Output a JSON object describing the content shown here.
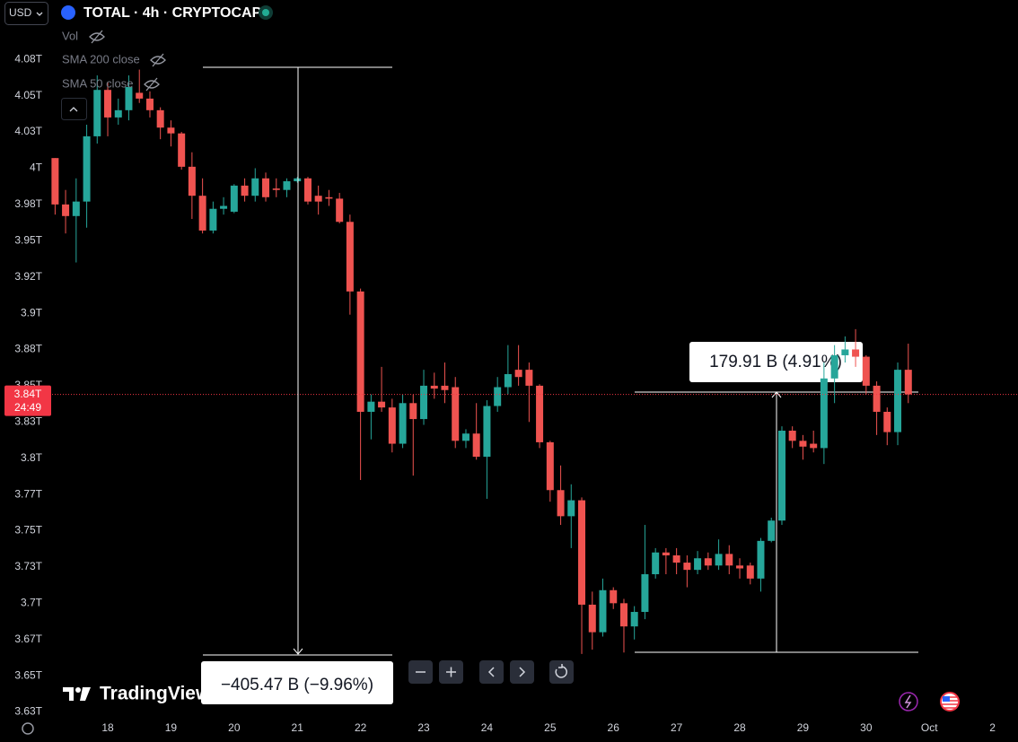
{
  "currency": "USD",
  "brand": "TradingView",
  "chart_data": {
    "type": "candlestick",
    "title": "TOTAL · 4h · CRYPTOCAP",
    "indicators": [
      "Vol",
      "SMA 200 close",
      "SMA 50 close"
    ],
    "up_color": "#26a69a",
    "down_color": "#ef5350",
    "grid": false,
    "last_price_label": "3.84T",
    "countdown": "24:49",
    "annotations": [
      "−405.47 B (−9.96%)",
      "179.91 B (4.91%)"
    ],
    "xlim": [
      17.119,
      32.403
    ],
    "xticks": [
      18,
      19,
      20,
      21,
      22,
      23,
      24,
      25,
      26,
      27,
      28,
      29,
      30,
      {
        "value": 31,
        "label": "Oct"
      },
      {
        "value": 32,
        "label": "2"
      }
    ],
    "ylim": [
      3.621,
      4.116
    ],
    "yticks": [
      {
        "value": 4.075,
        "label": "4.08T"
      },
      {
        "value": 4.05,
        "label": "4.05T"
      },
      {
        "value": 4.025,
        "label": "4.03T"
      },
      {
        "value": 4.0,
        "label": "4T"
      },
      {
        "value": 3.975,
        "label": "3.98T"
      },
      {
        "value": 3.95,
        "label": "3.95T"
      },
      {
        "value": 3.925,
        "label": "3.92T"
      },
      {
        "value": 3.9,
        "label": "3.9T"
      },
      {
        "value": 3.875,
        "label": "3.88T"
      },
      {
        "value": 3.85,
        "label": "3.85T"
      },
      {
        "value": 3.825,
        "label": "3.83T"
      },
      {
        "value": 3.8,
        "label": "3.8T"
      },
      {
        "value": 3.775,
        "label": "3.77T"
      },
      {
        "value": 3.75,
        "label": "3.75T"
      },
      {
        "value": 3.725,
        "label": "3.73T"
      },
      {
        "value": 3.7,
        "label": "3.7T"
      },
      {
        "value": 3.675,
        "label": "3.67T"
      },
      {
        "value": 3.65,
        "label": "3.65T"
      },
      {
        "value": 3.625,
        "label": "3.63T"
      }
    ],
    "x": [
      17.167,
      17.333,
      17.5,
      17.667,
      17.833,
      18,
      18.167,
      18.333,
      18.5,
      18.667,
      18.833,
      19,
      19.167,
      19.333,
      19.5,
      19.667,
      19.833,
      20,
      20.167,
      20.333,
      20.5,
      20.667,
      20.833,
      21,
      21.167,
      21.333,
      21.5,
      21.667,
      21.833,
      22,
      22.167,
      22.333,
      22.5,
      22.667,
      22.833,
      23,
      23.167,
      23.333,
      23.5,
      23.667,
      23.833,
      24,
      24.167,
      24.333,
      24.5,
      24.667,
      24.833,
      25,
      25.167,
      25.333,
      25.5,
      25.667,
      25.833,
      26,
      26.167,
      26.333,
      26.5,
      26.667,
      26.833,
      27,
      27.167,
      27.333,
      27.5,
      27.667,
      27.833,
      28,
      28.167,
      28.333,
      28.5,
      28.667,
      28.833,
      29,
      29.167,
      29.333,
      29.5,
      29.667,
      29.833,
      30,
      30.167,
      30.333,
      30.5,
      30.667
    ],
    "open": [
      4.007,
      3.975,
      3.967,
      3.977,
      4.022,
      4.054,
      4.035,
      4.04,
      4.052,
      4.048,
      4.04,
      4.028,
      4.024,
      4.001,
      3.981,
      3.957,
      3.972,
      3.97,
      3.988,
      3.981,
      3.993,
      3.986,
      3.985,
      3.991,
      3.993,
      3.981,
      3.98,
      3.979,
      3.963,
      3.915,
      3.832,
      3.839,
      3.835,
      3.81,
      3.838,
      3.827,
      3.85,
      3.85,
      3.849,
      3.812,
      3.817,
      3.801,
      3.836,
      3.849,
      3.861,
      3.861,
      3.85,
      3.811,
      3.778,
      3.76,
      3.771,
      3.699,
      3.68,
      3.709,
      3.7,
      3.684,
      3.694,
      3.72,
      3.735,
      3.733,
      3.728,
      3.723,
      3.731,
      3.726,
      3.734,
      3.726,
      3.726,
      3.717,
      3.743,
      3.757,
      3.819,
      3.812,
      3.81,
      3.807,
      3.855,
      3.871,
      3.875,
      3.87,
      3.85,
      3.832,
      3.818,
      3.861
    ],
    "high": [
      4.007,
      3.985,
      3.993,
      4.03,
      4.064,
      4.059,
      4.048,
      4.064,
      4.068,
      4.053,
      4.042,
      4.033,
      4.025,
      4.011,
      3.993,
      3.977,
      3.98,
      3.989,
      3.993,
      4.0,
      3.997,
      3.993,
      3.993,
      3.994,
      3.994,
      3.988,
      3.985,
      3.983,
      3.968,
      3.917,
      3.844,
      3.863,
      3.841,
      3.844,
      3.844,
      3.861,
      3.859,
      3.866,
      3.856,
      3.82,
      3.838,
      3.84,
      3.856,
      3.878,
      3.878,
      3.866,
      3.851,
      3.812,
      3.795,
      3.782,
      3.773,
      3.708,
      3.717,
      3.711,
      3.703,
      3.698,
      3.754,
      3.738,
      3.738,
      3.738,
      3.733,
      3.736,
      3.735,
      3.744,
      3.74,
      3.731,
      3.728,
      3.745,
      3.759,
      3.822,
      3.822,
      3.816,
      3.819,
      3.866,
      3.878,
      3.884,
      3.889,
      3.871,
      3.853,
      3.835,
      3.866,
      3.879
    ],
    "low": [
      3.968,
      3.955,
      3.935,
      3.959,
      4.017,
      4.022,
      4.03,
      4.033,
      4.045,
      4.035,
      4.02,
      4.015,
      3.999,
      3.965,
      3.955,
      3.955,
      3.968,
      3.969,
      3.977,
      3.977,
      3.977,
      3.98,
      3.98,
      3.99,
      3.975,
      3.968,
      3.974,
      3.962,
      3.899,
      3.785,
      3.813,
      3.832,
      3.804,
      3.807,
      3.788,
      3.823,
      3.841,
      3.838,
      3.807,
      3.807,
      3.799,
      3.772,
      3.832,
      3.844,
      3.85,
      3.825,
      3.807,
      3.77,
      3.754,
      3.738,
      3.665,
      3.668,
      3.677,
      3.696,
      3.666,
      3.675,
      3.689,
      3.717,
      3.72,
      3.72,
      3.711,
      3.72,
      3.723,
      3.723,
      3.72,
      3.717,
      3.713,
      3.708,
      3.742,
      3.754,
      3.807,
      3.799,
      3.804,
      3.796,
      3.838,
      3.866,
      3.863,
      3.844,
      3.816,
      3.809,
      3.809,
      3.838
    ],
    "close": [
      3.975,
      3.967,
      3.977,
      4.022,
      4.054,
      4.035,
      4.04,
      4.056,
      4.048,
      4.04,
      4.028,
      4.024,
      4.001,
      3.981,
      3.957,
      3.972,
      3.974,
      3.988,
      3.981,
      3.993,
      3.98,
      3.985,
      3.991,
      3.993,
      3.977,
      3.977,
      3.979,
      3.963,
      3.915,
      3.832,
      3.839,
      3.835,
      3.81,
      3.838,
      3.827,
      3.85,
      3.848,
      3.847,
      3.812,
      3.817,
      3.801,
      3.836,
      3.849,
      3.858,
      3.856,
      3.85,
      3.811,
      3.778,
      3.76,
      3.771,
      3.699,
      3.68,
      3.709,
      3.7,
      3.684,
      3.694,
      3.72,
      3.735,
      3.733,
      3.728,
      3.723,
      3.731,
      3.726,
      3.734,
      3.726,
      3.724,
      3.717,
      3.743,
      3.757,
      3.819,
      3.812,
      3.808,
      3.807,
      3.855,
      3.871,
      3.875,
      3.87,
      3.85,
      3.832,
      3.818,
      3.861,
      3.844
    ]
  }
}
